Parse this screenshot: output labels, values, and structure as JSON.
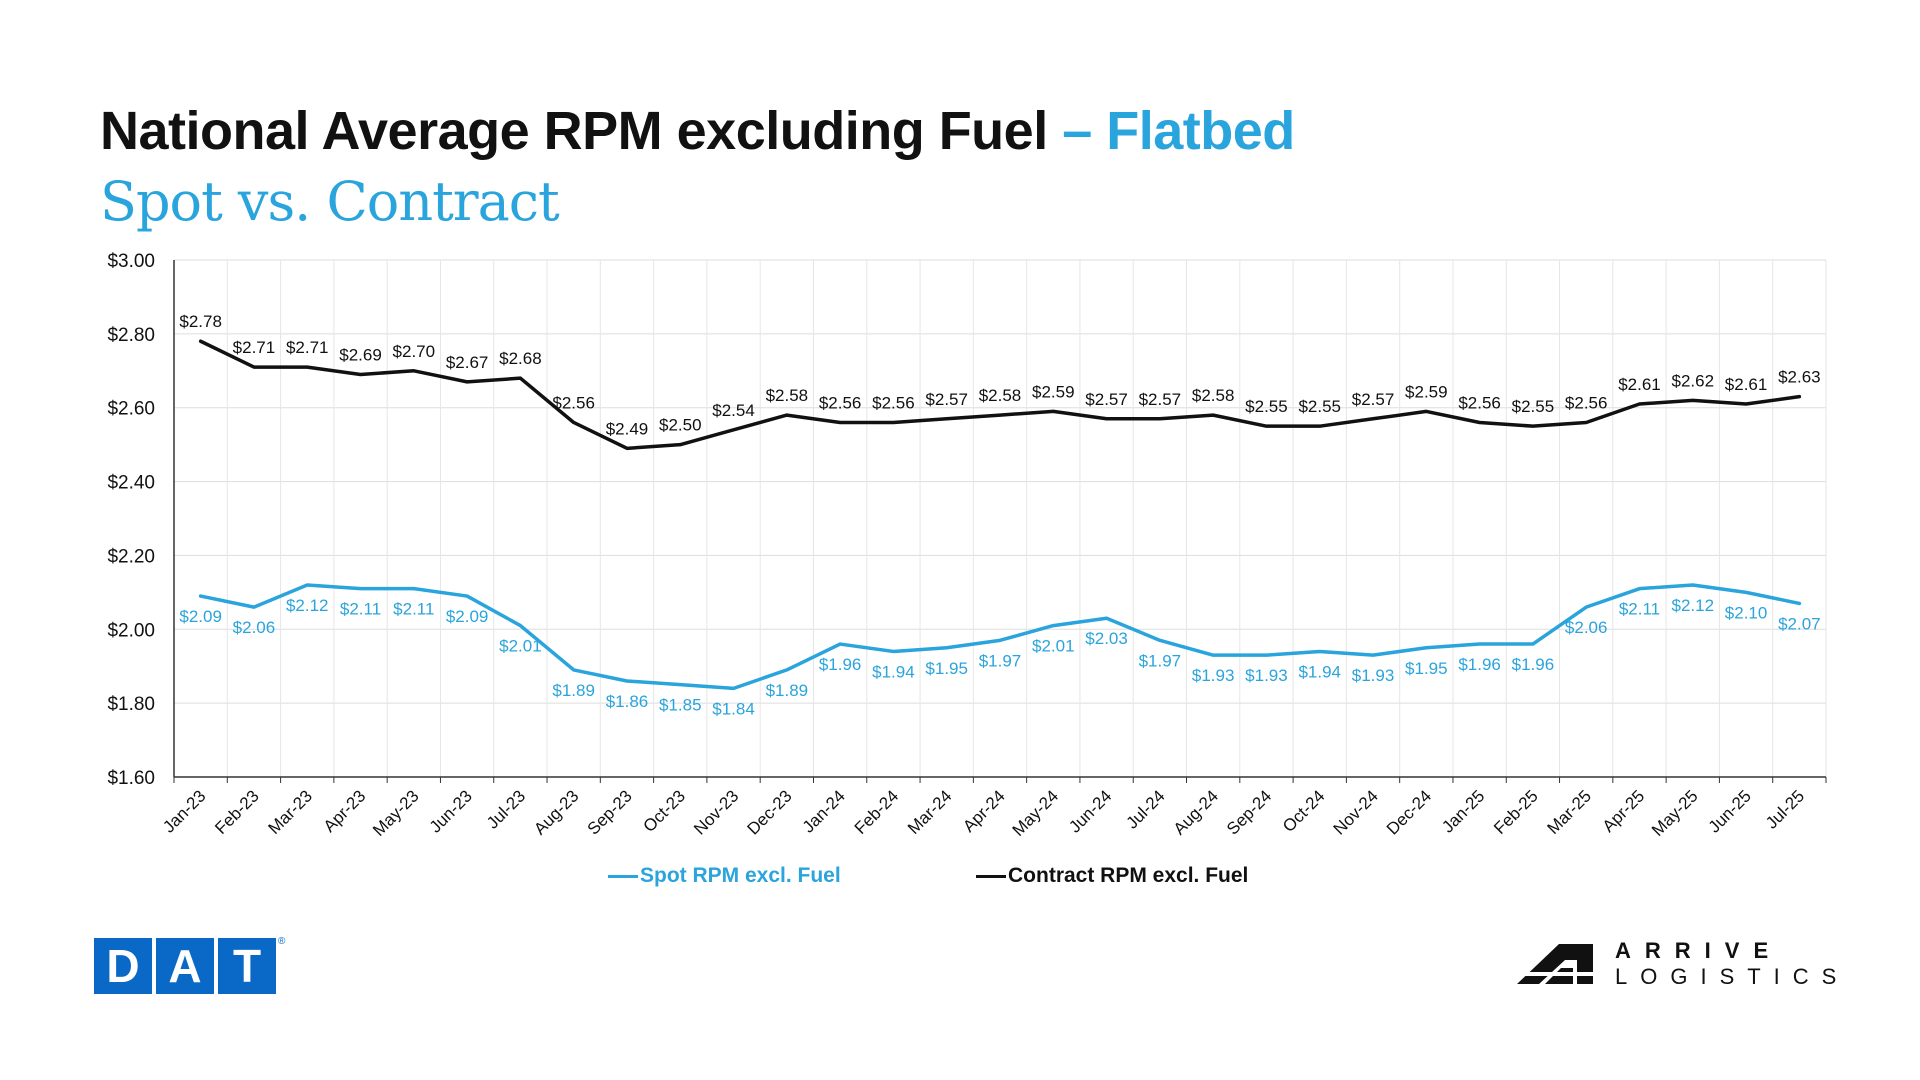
{
  "header": {
    "title_main": "National Average RPM excluding Fuel",
    "title_accent": "– Flatbed",
    "subtitle": "Spot vs. Contract"
  },
  "colors": {
    "spot": "#2aa4dc",
    "contract": "#111111",
    "accent": "#2aa4dc",
    "dat_blue": "#0a68c7"
  },
  "chart_data": {
    "type": "line",
    "categories": [
      "Jan-23",
      "Feb-23",
      "Mar-23",
      "Apr-23",
      "May-23",
      "Jun-23",
      "Jul-23",
      "Aug-23",
      "Sep-23",
      "Oct-23",
      "Nov-23",
      "Dec-23",
      "Jan-24",
      "Feb-24",
      "Mar-24",
      "Apr-24",
      "May-24",
      "Jun-24",
      "Jul-24",
      "Aug-24",
      "Sep-24",
      "Oct-24",
      "Nov-24",
      "Dec-24",
      "Jan-25",
      "Feb-25",
      "Mar-25",
      "Apr-25",
      "May-25",
      "Jun-25",
      "Jul-25"
    ],
    "series": [
      {
        "name": "Spot RPM excl. Fuel",
        "color": "#2aa4dc",
        "values": [
          2.09,
          2.06,
          2.12,
          2.11,
          2.11,
          2.09,
          2.01,
          1.89,
          1.86,
          1.85,
          1.84,
          1.89,
          1.96,
          1.94,
          1.95,
          1.97,
          2.01,
          2.03,
          1.97,
          1.93,
          1.93,
          1.94,
          1.93,
          1.95,
          1.96,
          1.96,
          2.06,
          2.11,
          2.12,
          2.1,
          2.07
        ],
        "labels": [
          "$2.09",
          "$2.06",
          "$2.12",
          "$2.11",
          "$2.11",
          "$2.09",
          "$2.01",
          "$1.89",
          "$1.86",
          "$1.85",
          "$1.84",
          "$1.89",
          "$1.96",
          "$1.94",
          "$1.95",
          "$1.97",
          "$2.01",
          "$2.03",
          "$1.97",
          "$1.93",
          "$1.93",
          "$1.94",
          "$1.93",
          "$1.95",
          "$1.96",
          "$1.96",
          "$2.06",
          "$2.11",
          "$2.12",
          "$2.10",
          "$2.07"
        ]
      },
      {
        "name": "Contract RPM excl. Fuel",
        "color": "#111111",
        "values": [
          2.78,
          2.71,
          2.71,
          2.69,
          2.7,
          2.67,
          2.68,
          2.56,
          2.49,
          2.5,
          2.54,
          2.58,
          2.56,
          2.56,
          2.57,
          2.58,
          2.59,
          2.57,
          2.57,
          2.58,
          2.55,
          2.55,
          2.57,
          2.59,
          2.56,
          2.55,
          2.56,
          2.61,
          2.62,
          2.61,
          2.63
        ],
        "labels": [
          "$2.78",
          "$2.71",
          "$2.71",
          "$2.69",
          "$2.70",
          "$2.67",
          "$2.68",
          "$2.56",
          "$2.49",
          "$2.50",
          "$2.54",
          "$2.58",
          "$2.56",
          "$2.56",
          "$2.57",
          "$2.58",
          "$2.59",
          "$2.57",
          "$2.57",
          "$2.58",
          "$2.55",
          "$2.55",
          "$2.57",
          "$2.59",
          "$2.56",
          "$2.55",
          "$2.56",
          "$2.61",
          "$2.62",
          "$2.61",
          "$2.63"
        ]
      }
    ],
    "ylim": [
      1.6,
      3.0
    ],
    "y_ticks": [
      1.6,
      1.8,
      2.0,
      2.2,
      2.4,
      2.6,
      2.8,
      3.0
    ],
    "y_tick_labels": [
      "$1.60",
      "$1.80",
      "$2.00",
      "$2.20",
      "$2.40",
      "$2.60",
      "$2.80",
      "$3.00"
    ],
    "grid": true,
    "legend_position": "bottom"
  },
  "logos": {
    "dat_letters": [
      "D",
      "A",
      "T"
    ],
    "dat_registered": "®",
    "arrive_line1": "ARRIVE",
    "arrive_line2": "LOGISTICS"
  }
}
